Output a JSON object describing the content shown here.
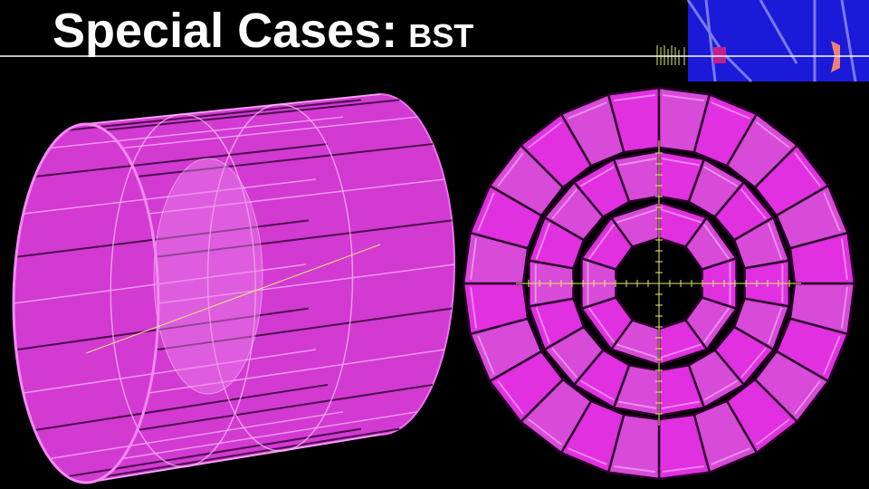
{
  "title": {
    "main": "Special Cases:",
    "sub": "BST"
  }
}
